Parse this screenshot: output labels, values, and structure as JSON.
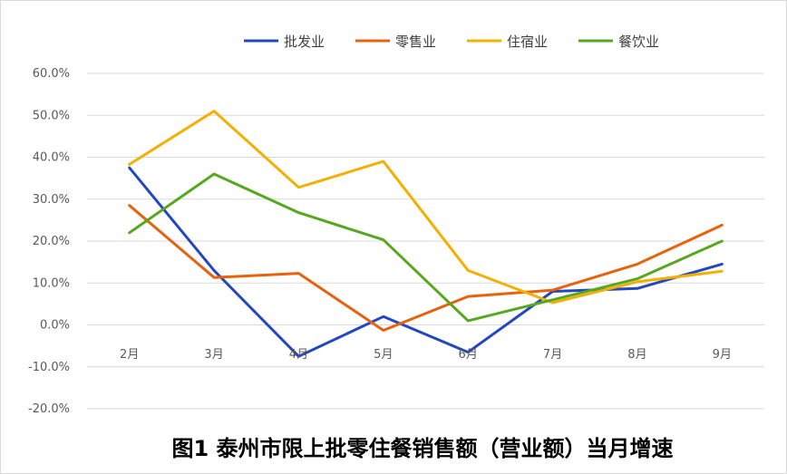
{
  "chart_data": {
    "type": "line",
    "title": "图1  泰州市限上批零住餐销售额（营业额）当月增速",
    "xlabel": "",
    "ylabel": "",
    "categories": [
      "2月",
      "3月",
      "4月",
      "5月",
      "6月",
      "7月",
      "8月",
      "9月"
    ],
    "yticks": [
      "60.0%",
      "50.0%",
      "40.0%",
      "30.0%",
      "20.0%",
      "10.0%",
      "0.0%",
      "-10.0%",
      "-20.0%"
    ],
    "ylim": [
      -20,
      60
    ],
    "grid": true,
    "legend": "top",
    "series": [
      {
        "name": "批发业",
        "color": "#2347c0",
        "values": [
          37.5,
          13,
          -7.5,
          2,
          -6.5,
          8,
          8.7,
          14.5
        ]
      },
      {
        "name": "零售业",
        "color": "#e8620e",
        "values": [
          28.5,
          11.3,
          12.3,
          -1.3,
          6.8,
          8.3,
          14.5,
          23.8
        ]
      },
      {
        "name": "住宿业",
        "color": "#f4b000",
        "values": [
          38.3,
          51,
          32.8,
          39,
          13,
          5.3,
          10.3,
          12.8
        ]
      },
      {
        "name": "餐饮业",
        "color": "#56a81f",
        "values": [
          22,
          36,
          26.8,
          20.3,
          1,
          6,
          11,
          20
        ]
      }
    ]
  }
}
